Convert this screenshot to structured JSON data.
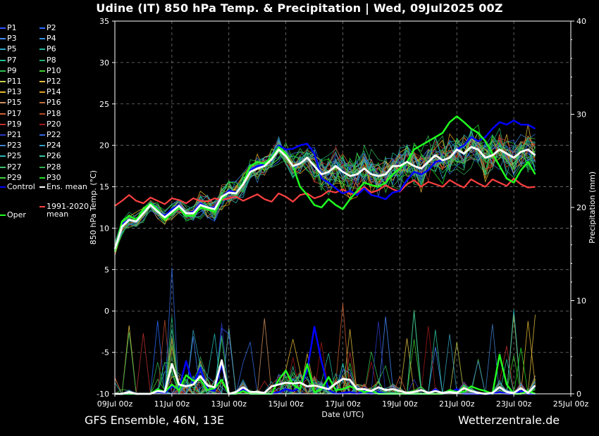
{
  "title": "Udine  (IT)  850 hPa Temp. & Precipitation | Wed, 09Jul2025 00Z",
  "footer": {
    "left": "GFS Ensemble, 46N, 13E",
    "right": "Wetterzentrale.de"
  },
  "legend": {
    "members": [
      {
        "label": "P1",
        "color": "#3050ff"
      },
      {
        "label": "P2",
        "color": "#2a6bff"
      },
      {
        "label": "P3",
        "color": "#4488ff"
      },
      {
        "label": "P4",
        "color": "#2f8fe0"
      },
      {
        "label": "P5",
        "color": "#2aa8c8"
      },
      {
        "label": "P6",
        "color": "#20b8a0"
      },
      {
        "label": "P7",
        "color": "#20c090"
      },
      {
        "label": "P8",
        "color": "#20b070"
      },
      {
        "label": "P9",
        "color": "#30c050"
      },
      {
        "label": "P10",
        "color": "#40d030"
      },
      {
        "label": "P11",
        "color": "#c8d050"
      },
      {
        "label": "P12",
        "color": "#e0c040"
      },
      {
        "label": "P13",
        "color": "#e8b830"
      },
      {
        "label": "P14",
        "color": "#e0a020"
      },
      {
        "label": "P15",
        "color": "#d09060"
      },
      {
        "label": "P16",
        "color": "#c07040"
      },
      {
        "label": "P17",
        "color": "#d06030"
      },
      {
        "label": "P18",
        "color": "#b84828"
      },
      {
        "label": "P19",
        "color": "#c03030"
      },
      {
        "label": "P20",
        "color": "#a01818"
      },
      {
        "label": "P21",
        "color": "#2838c0"
      },
      {
        "label": "P22",
        "color": "#3068e0"
      },
      {
        "label": "P23",
        "color": "#4080d0"
      },
      {
        "label": "P24",
        "color": "#30a0c0"
      },
      {
        "label": "P25",
        "color": "#28b8b8"
      },
      {
        "label": "P26",
        "color": "#30c8a0"
      },
      {
        "label": "P27",
        "color": "#40c070"
      },
      {
        "label": "P28",
        "color": "#30b050"
      },
      {
        "label": "P29",
        "color": "#40d040"
      },
      {
        "label": "P30",
        "color": "#20e020"
      }
    ],
    "control": {
      "label": "Control",
      "color": "#0000ff"
    },
    "ens_mean": {
      "label": "Ens. mean",
      "color": "#ffffff"
    },
    "clim": {
      "label": "1991-2020",
      "label2": "mean",
      "color": "#ff4040"
    },
    "oper": {
      "label": "Oper",
      "color": "#20ff20"
    }
  },
  "chart_data": {
    "type": "line",
    "title": "Udine  (IT)  850 hPa Temp. & Precipitation | Wed, 09Jul2025 00Z",
    "xlabel": "Date (UTC)",
    "ylabel": "850 hPa Temp. (°C)",
    "y2label": "Precipitation (mm)",
    "ylim": [
      -10,
      35
    ],
    "y2lim": [
      0,
      40
    ],
    "yticks": [
      "35",
      "30",
      "25",
      "20",
      "15",
      "10",
      "5",
      "0",
      "-5",
      "-10"
    ],
    "y2ticks": [
      "40",
      "30",
      "20",
      "10",
      "0"
    ],
    "xticks": [
      "09Jul 00z",
      "11Jul 00z",
      "13Jul 00z",
      "15Jul 00z",
      "17Jul 00z",
      "19Jul 00z",
      "21Jul 00z",
      "23Jul 00z",
      "25Jul 00z"
    ],
    "x_hours_range": [
      0,
      384
    ],
    "x_step_hours": 6,
    "series": [
      {
        "name": "Control",
        "values": [
          7.5,
          10.5,
          11,
          10.8,
          12,
          13,
          12,
          11.5,
          12.3,
          12.8,
          11.8,
          12,
          13,
          12.5,
          12.5,
          13.8,
          14.5,
          14.3,
          15.5,
          17,
          17.5,
          17.7,
          18.5,
          20,
          19.5,
          19.6,
          20,
          20.2,
          19,
          16,
          15.5,
          14.8,
          14.2,
          14.5,
          14,
          14.8,
          14,
          13.8,
          13.5,
          14.3,
          14.5,
          15.8,
          16.8,
          16.5,
          17,
          18,
          18.2,
          18.5,
          19.5,
          20,
          21,
          20.5,
          21,
          22,
          22.8,
          22.5,
          23,
          22.5,
          22.5,
          22
        ]
      },
      {
        "name": "Ens. mean",
        "values": [
          7.5,
          10.2,
          11,
          10.8,
          11.8,
          12.8,
          12,
          11.3,
          12,
          12.7,
          11.8,
          11.8,
          12.8,
          12.5,
          12.3,
          13.8,
          14.3,
          14.2,
          15.3,
          16.8,
          17.2,
          17.5,
          18.3,
          19.5,
          18.7,
          17.5,
          17.8,
          18.5,
          17.5,
          16.5,
          16.8,
          17.5,
          16.8,
          16.3,
          16.5,
          17.2,
          16.5,
          16.3,
          16.5,
          17.5,
          17.5,
          18,
          17.5,
          17.2,
          18,
          18.8,
          18.2,
          18.5,
          19.5,
          19,
          19.8,
          19.5,
          18.5,
          18.8,
          19.5,
          19,
          18.5,
          19.2,
          19.5,
          18.8
        ]
      },
      {
        "name": "Oper",
        "values": [
          7.2,
          10.8,
          11.5,
          11,
          12.2,
          13,
          12.2,
          11,
          11.8,
          12.5,
          11.5,
          11.5,
          12.5,
          12.3,
          12,
          13.5,
          14.3,
          14.2,
          15.5,
          17.5,
          18,
          17.8,
          18.5,
          19.8,
          19,
          17.5,
          15,
          14,
          12.8,
          12.5,
          13.5,
          12.8,
          12.3,
          13.5,
          14.5,
          15.5,
          15.2,
          15,
          15.5,
          16.5,
          17.2,
          18,
          19.5,
          20,
          20.5,
          21,
          21.5,
          22.8,
          23.5,
          22.8,
          22,
          21.5,
          20.5,
          19,
          17.5,
          16,
          15.5,
          17,
          18,
          16.5
        ]
      },
      {
        "name": "1991-2020 mean",
        "values": [
          12.7,
          13.3,
          14,
          13.3,
          13,
          13.7,
          13.3,
          12.9,
          13.6,
          13.4,
          13,
          13.6,
          13.3,
          13.2,
          13.6,
          13.4,
          13.6,
          13.8,
          13.3,
          13.7,
          14.1,
          13.5,
          13.2,
          14.2,
          13.8,
          13.2,
          14,
          14.2,
          13.6,
          13.9,
          14.5,
          14.3,
          14.7,
          14.1,
          14.3,
          15,
          14.3,
          14.6,
          15.2,
          14.7,
          14.4,
          15.3,
          15.8,
          15,
          15.6,
          15.3,
          15,
          15.8,
          15.3,
          14.9,
          15.9,
          15.4,
          15,
          15.9,
          15.5,
          15.1,
          16,
          15.3,
          14.9,
          15
        ]
      },
      {
        "name": "Ens. mean precip",
        "values": [
          0,
          0,
          0.2,
          0,
          0,
          0,
          0.3,
          0.2,
          3.2,
          1,
          0.8,
          1,
          1.9,
          0.9,
          0.7,
          3.6,
          0,
          0.2,
          0.7,
          0.2,
          0.2,
          0.1,
          0.8,
          1,
          1.2,
          1.1,
          1.2,
          0.8,
          0.9,
          0.7,
          0.5,
          1.1,
          1.6,
          1.5,
          0.5,
          0.5,
          0.3,
          0.7,
          0.4,
          0.5,
          0.3,
          0.1,
          0.2,
          0.4,
          0.1,
          0.3,
          0.1,
          0.2,
          0.1,
          0.6,
          0.3,
          0.1,
          0,
          0.1,
          0.7,
          0.2,
          0.1,
          0.6,
          0.1,
          0.9
        ]
      },
      {
        "name": "Control precip",
        "values": [
          0,
          0,
          0,
          0,
          0,
          0,
          0.2,
          0.1,
          0.8,
          0.5,
          3.5,
          1,
          2.8,
          0.5,
          0.3,
          3.2,
          0,
          0,
          0.5,
          0,
          0,
          0,
          0,
          0.2,
          0.5,
          0.3,
          0.6,
          2.5,
          7.2,
          3.5,
          0.4,
          0,
          0.1,
          0.2,
          0,
          0.3,
          0,
          0.2,
          0,
          0,
          0,
          0,
          0,
          0,
          0,
          0.5,
          0,
          0.2,
          0.5,
          0,
          0,
          0,
          0,
          0,
          0.2,
          0,
          0,
          0.3,
          0,
          0
        ]
      },
      {
        "name": "Oper precip",
        "values": [
          0,
          0,
          0,
          0,
          0,
          0,
          0.5,
          0.2,
          1,
          0.4,
          2,
          1.4,
          1.5,
          0.4,
          0.6,
          1.5,
          0,
          0,
          0.3,
          0,
          0,
          0,
          0,
          1.5,
          2.5,
          1,
          0.5,
          3.2,
          0.2,
          0.5,
          1.8,
          0.4,
          0.5,
          0.8,
          0.5,
          0.2,
          0.3,
          0,
          0,
          0,
          0,
          0,
          0,
          0,
          0,
          0,
          0,
          0.4,
          0.2,
          0.2,
          0.8,
          0.5,
          0.3,
          0,
          4.2,
          1,
          0,
          0,
          0.3,
          0
        ]
      }
    ]
  }
}
